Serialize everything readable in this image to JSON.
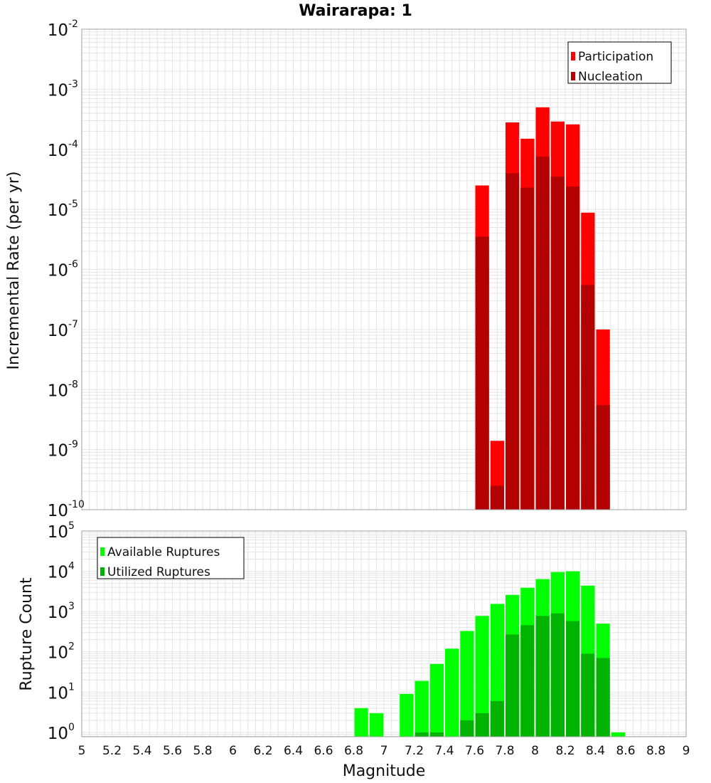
{
  "chart_data": [
    {
      "type": "bar",
      "title": "Wairarapa: 1",
      "xlabel": "Magnitude",
      "ylabel": "Incremental Rate (per yr)",
      "yscale": "log",
      "ylim": [
        1e-10,
        0.01
      ],
      "xlim": [
        5,
        9
      ],
      "bin_width": 0.1,
      "overlay": true,
      "grid": true,
      "legend_position": "top-right",
      "x": [
        7.65,
        7.75,
        7.85,
        7.95,
        8.05,
        8.15,
        8.25,
        8.35,
        8.45
      ],
      "series": [
        {
          "name": "Participation",
          "color": "#ff0000",
          "values": [
            2.5e-05,
            1.4e-09,
            0.00028,
            0.00015,
            0.0005,
            0.00029,
            0.00026,
            8.8e-06,
            1e-07
          ]
        },
        {
          "name": "Nucleation",
          "color": "#b30000",
          "values": [
            3.5e-06,
            2.5e-10,
            4e-05,
            2.3e-05,
            7.5e-05,
            3.5e-05,
            2.4e-05,
            5.5e-07,
            5.5e-09
          ]
        }
      ]
    },
    {
      "type": "bar",
      "xlabel": "Magnitude",
      "ylabel": "Rupture Count",
      "yscale": "log",
      "ylim": [
        0.78,
        100000
      ],
      "xlim": [
        5,
        9
      ],
      "bin_width": 0.1,
      "overlay": true,
      "grid": true,
      "legend_position": "top-left",
      "x": [
        6.85,
        6.95,
        7.15,
        7.25,
        7.35,
        7.45,
        7.55,
        7.65,
        7.75,
        7.85,
        7.95,
        8.05,
        8.15,
        8.25,
        8.35,
        8.45,
        8.55
      ],
      "series": [
        {
          "name": "Available Ruptures",
          "color": "#00ff00",
          "values": [
            4,
            3,
            9,
            19,
            50,
            120,
            330,
            780,
            1550,
            2600,
            3900,
            6400,
            9600,
            10000,
            4400,
            500,
            1
          ]
        },
        {
          "name": "Utilized Ruptures",
          "color": "#00b300",
          "values": [
            0,
            0,
            0,
            1,
            1,
            0,
            2,
            3,
            6,
            270,
            460,
            780,
            900,
            580,
            90,
            70,
            0
          ]
        }
      ]
    }
  ],
  "x_ticks": [
    "5",
    "5.2",
    "5.4",
    "5.6",
    "5.8",
    "6",
    "6.2",
    "6.4",
    "6.6",
    "6.8",
    "7",
    "7.2",
    "7.4",
    "7.6",
    "7.8",
    "8",
    "8.2",
    "8.4",
    "8.6",
    "8.8",
    "9"
  ],
  "top_y_ticks": {
    "base": "10",
    "exponents": [
      "-10",
      "-9",
      "-8",
      "-7",
      "-6",
      "-5",
      "-4",
      "-3",
      "-2"
    ]
  },
  "bottom_y_ticks": {
    "base": "10",
    "exponents": [
      "0",
      "1",
      "2",
      "3",
      "4",
      "5"
    ]
  },
  "colors": {
    "frame": "#a0a0a0",
    "grid": "#e4e4e4"
  }
}
